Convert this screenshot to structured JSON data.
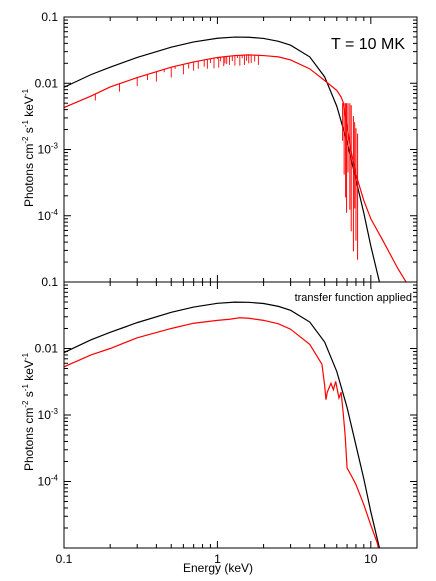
{
  "chart_data": [
    {
      "type": "line",
      "panel": "top",
      "annotation": "T = 10 MK",
      "ylabel_parts": [
        "Photons cm",
        "-2",
        " s",
        "-1",
        " keV",
        "-1"
      ],
      "xlabel": "",
      "xscale": "log",
      "yscale": "log",
      "xlim": [
        0.1,
        20
      ],
      "ylim": [
        1e-05,
        0.1
      ],
      "yticks": [
        {
          "value": 0.1,
          "label": "0.1"
        },
        {
          "value": 0.01,
          "label": "0.01"
        },
        {
          "value": 0.001,
          "base": "10",
          "exp": "-3"
        },
        {
          "value": 0.0001,
          "base": "10",
          "exp": "-4"
        }
      ],
      "series": [
        {
          "color": "#000000",
          "x": [
            0.1,
            0.15,
            0.2,
            0.3,
            0.5,
            0.7,
            1.0,
            1.3,
            1.6,
            2.0,
            2.5,
            3.0,
            4.0,
            5.0,
            6.0,
            7.0,
            8.0,
            9.0,
            10.0,
            12.0
          ],
          "y": [
            0.0087,
            0.0135,
            0.0175,
            0.0245,
            0.035,
            0.042,
            0.0478,
            0.0498,
            0.0495,
            0.0475,
            0.043,
            0.0375,
            0.025,
            0.0125,
            0.0045,
            0.0013,
            0.00035,
            0.00011,
            3.5e-05,
            6e-06
          ]
        },
        {
          "color": "#ff0000",
          "x": [
            0.1,
            0.15,
            0.2,
            0.3,
            0.5,
            0.7,
            1.0,
            1.3,
            1.6,
            2.0,
            2.5,
            3.0,
            4.0,
            5.0,
            6.0,
            6.4,
            6.6,
            7.0,
            7.5,
            8.0,
            9.0,
            10.0,
            12.0,
            15.0,
            18.0
          ],
          "y": [
            0.0043,
            0.0064,
            0.0088,
            0.0122,
            0.0175,
            0.021,
            0.0245,
            0.0262,
            0.0268,
            0.0262,
            0.025,
            0.0225,
            0.0165,
            0.011,
            0.0078,
            0.0062,
            0.0052,
            0.0022,
            0.00085,
            0.00042,
            0.00017,
            9e-05,
            4.2e-05,
            1.6e-05,
            8e-06
          ]
        }
      ],
      "absorption_lines_keV": [
        0.16,
        0.23,
        0.3,
        0.35,
        0.4,
        0.45,
        0.5,
        0.53,
        0.6,
        0.65,
        0.7,
        0.75,
        0.82,
        0.86,
        0.9,
        0.95,
        1.0,
        1.02,
        1.05,
        1.1,
        1.12,
        1.15,
        1.2,
        1.25,
        1.3,
        1.35,
        1.4,
        1.45,
        1.5,
        1.55,
        1.6,
        1.66,
        1.75,
        1.85
      ],
      "edge_features_keV": [
        6.55,
        6.7,
        6.85,
        6.95,
        7.1,
        7.3,
        7.45,
        7.7,
        7.85,
        8.0,
        8.2
      ]
    },
    {
      "type": "line",
      "panel": "bottom",
      "annotation": "transfer function applied",
      "ylabel_parts": [
        "Photons cm",
        "-2",
        " s",
        "-1",
        " keV",
        "-1"
      ],
      "xlabel": "Energy (keV)",
      "xscale": "log",
      "yscale": "log",
      "xlim": [
        0.1,
        20
      ],
      "ylim": [
        1e-05,
        0.1
      ],
      "xticks": [
        {
          "value": 0.1,
          "label": "0.1"
        },
        {
          "value": 1,
          "label": "1"
        },
        {
          "value": 10,
          "label": "10"
        }
      ],
      "yticks": [
        {
          "value": 0.1,
          "label": "0.1"
        },
        {
          "value": 0.01,
          "label": "0.01"
        },
        {
          "value": 0.001,
          "base": "10",
          "exp": "-3"
        },
        {
          "value": 0.0001,
          "base": "10",
          "exp": "-4"
        }
      ],
      "series": [
        {
          "color": "#000000",
          "x": [
            0.1,
            0.15,
            0.2,
            0.3,
            0.5,
            0.7,
            1.0,
            1.3,
            1.6,
            2.0,
            2.5,
            3.0,
            4.0,
            5.0,
            6.0,
            7.0,
            8.0,
            9.0,
            10.0,
            12.0
          ],
          "y": [
            0.0087,
            0.0135,
            0.0175,
            0.0245,
            0.035,
            0.042,
            0.0478,
            0.0498,
            0.0495,
            0.0475,
            0.043,
            0.0375,
            0.025,
            0.0125,
            0.0045,
            0.0013,
            0.00035,
            0.00011,
            3.5e-05,
            6e-06
          ]
        },
        {
          "color": "#ff0000",
          "x": [
            0.1,
            0.15,
            0.2,
            0.3,
            0.5,
            0.7,
            1.0,
            1.2,
            1.4,
            1.6,
            2.0,
            2.5,
            3.0,
            4.0,
            4.8,
            5.0,
            5.1,
            5.2,
            5.5,
            5.7,
            5.9,
            6.2,
            6.4,
            6.6,
            6.8,
            7.0,
            7.5,
            8.0,
            9.0,
            10.0,
            11.0,
            12.0
          ],
          "y": [
            0.0053,
            0.008,
            0.01,
            0.0145,
            0.02,
            0.024,
            0.0265,
            0.0275,
            0.029,
            0.0285,
            0.0265,
            0.0235,
            0.0195,
            0.0115,
            0.0058,
            0.0028,
            0.0017,
            0.0022,
            0.003,
            0.0024,
            0.0032,
            0.0018,
            0.0022,
            0.0011,
            0.0005,
            0.00016,
            0.00012,
            9e-05,
            4.5e-05,
            2.2e-05,
            1.2e-05,
            5e-06
          ]
        }
      ]
    }
  ]
}
